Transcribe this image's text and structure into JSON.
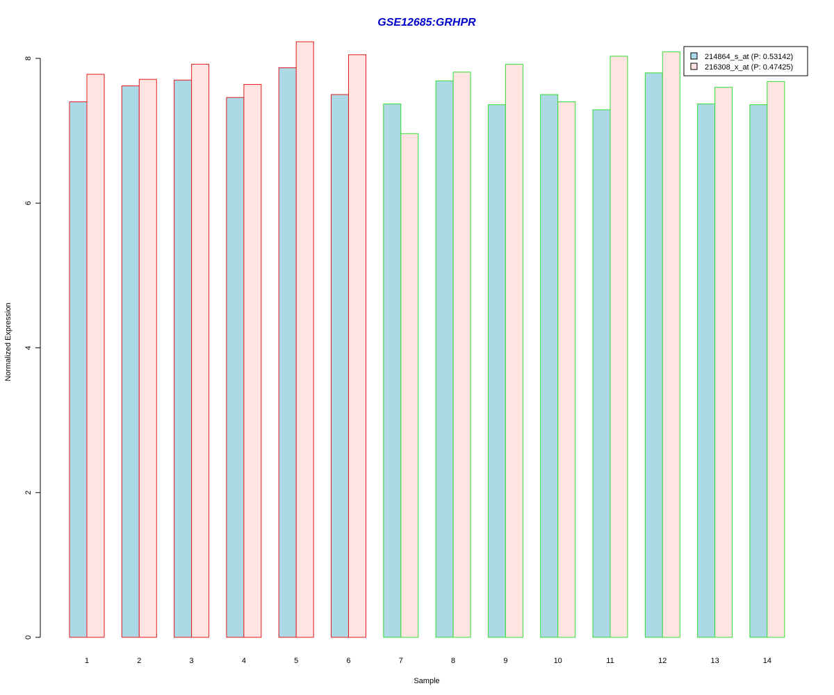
{
  "chart_data": {
    "type": "bar",
    "title": "GSE12685:GRHPR",
    "xlabel": "Sample",
    "ylabel": "Normalized Expression",
    "categories": [
      "1",
      "2",
      "3",
      "4",
      "5",
      "6",
      "7",
      "8",
      "9",
      "10",
      "11",
      "12",
      "13",
      "14"
    ],
    "series": [
      {
        "name": "214864_s_at (P: 0.53142)",
        "fill": "#add8e6",
        "values": [
          7.4,
          7.62,
          7.7,
          7.46,
          7.87,
          7.5,
          7.37,
          7.69,
          7.36,
          7.5,
          7.29,
          7.8,
          7.37,
          7.36
        ]
      },
      {
        "name": "216308_x_at (P: 0.47425)",
        "fill": "#ffe4e1",
        "values": [
          7.78,
          7.71,
          7.92,
          7.64,
          8.23,
          8.05,
          6.96,
          7.81,
          7.92,
          7.4,
          8.03,
          8.09,
          7.6,
          7.68
        ]
      }
    ],
    "group_border_colors": [
      "#e31a1c",
      "#e31a1c",
      "#e31a1c",
      "#e31a1c",
      "#e31a1c",
      "#e31a1c",
      "#33dd33",
      "#33dd33",
      "#33dd33",
      "#33dd33",
      "#33dd33",
      "#33dd33",
      "#33dd33",
      "#33dd33"
    ],
    "y_ticks": [
      0,
      2,
      4,
      6,
      8
    ],
    "ylim": [
      0,
      8.3
    ],
    "grid": false,
    "legend_position": "top-right",
    "title_color": "#0000cc"
  }
}
